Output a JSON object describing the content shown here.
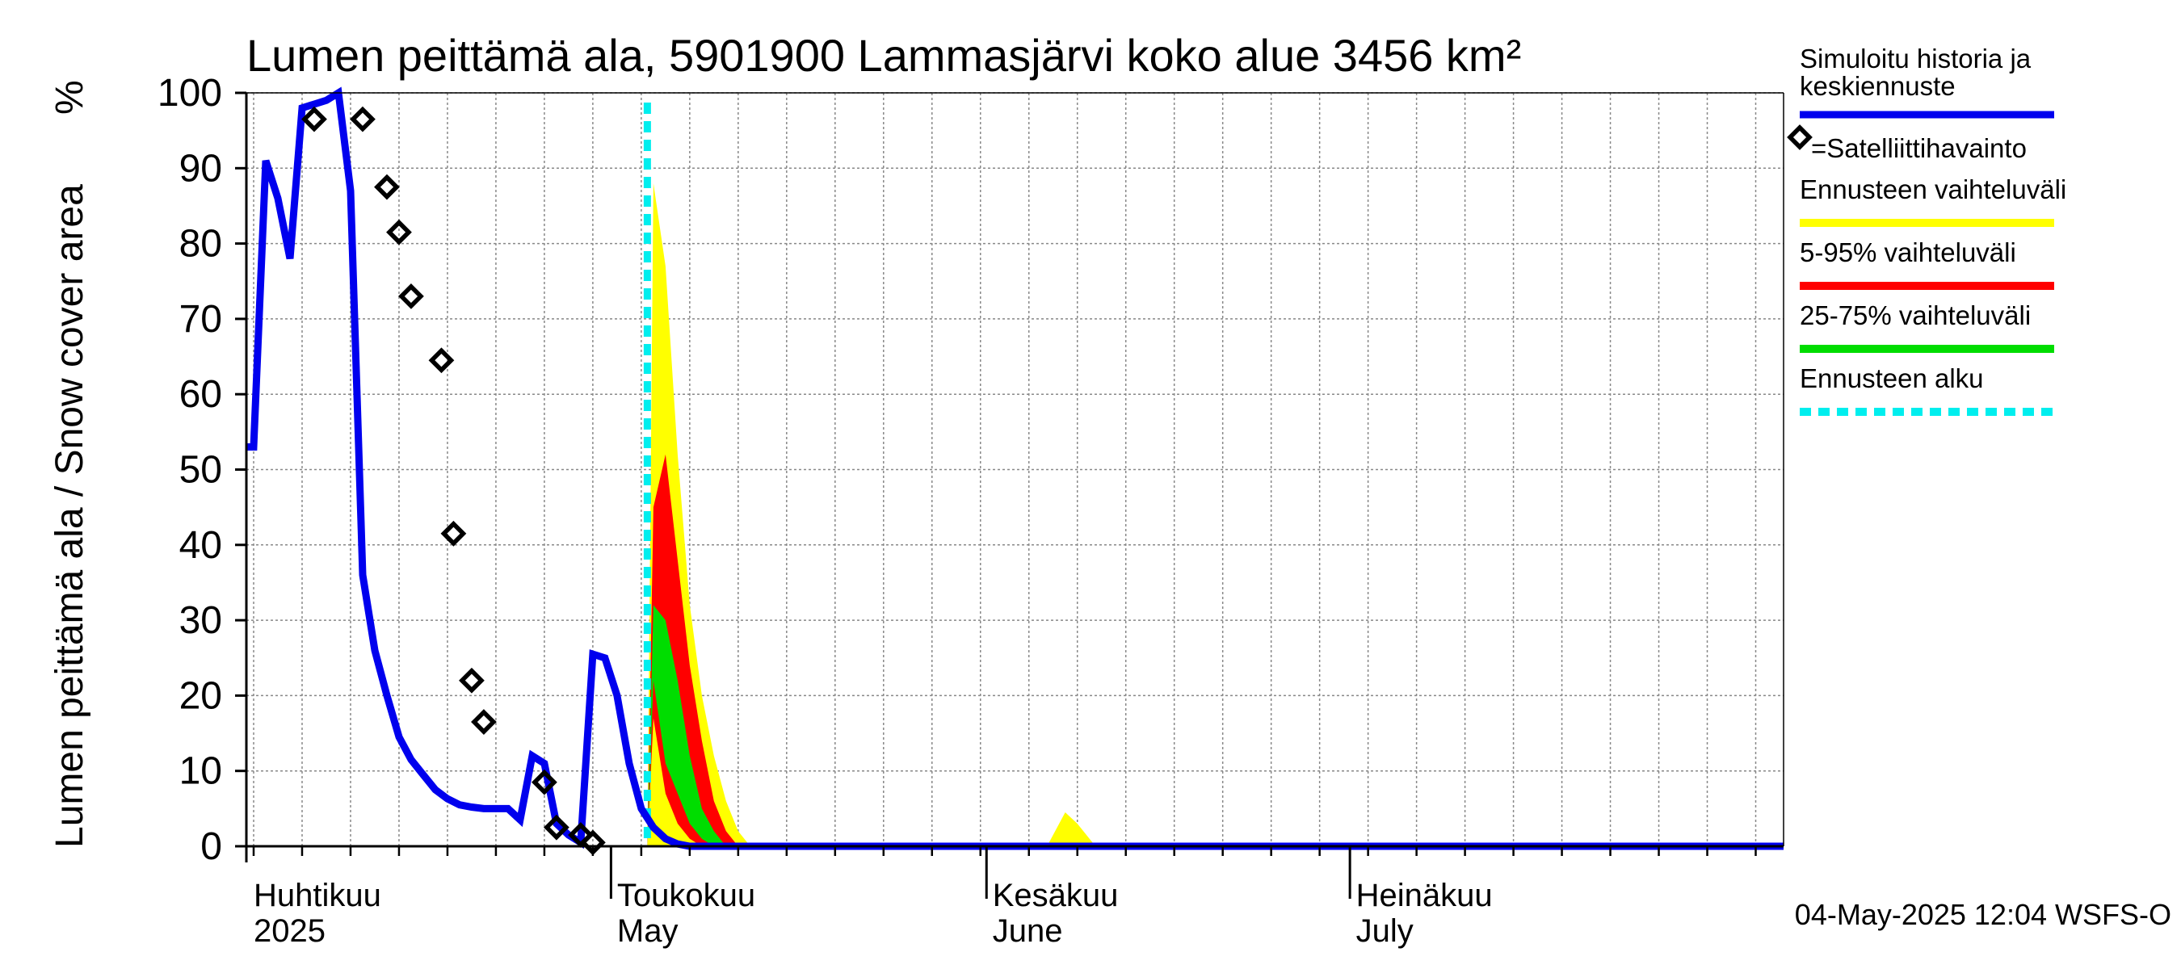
{
  "chart_data": {
    "type": "area",
    "title": "Lumen peittämä ala, 5901900 Lammasjärvi koko alue 3456 km²",
    "ylabel": "Lumen peittämä ala / Snow cover area",
    "yunit": "%",
    "ylim": [
      0,
      100
    ],
    "yticks": [
      0,
      10,
      20,
      30,
      40,
      50,
      60,
      70,
      80,
      90,
      100
    ],
    "xlim_days": [
      0,
      127
    ],
    "x_unit": "days since 2025-04-01",
    "month_labels": [
      {
        "fi": "Huhtikuu",
        "en": "2025",
        "day": 0
      },
      {
        "fi": "Toukokuu",
        "en": "May",
        "day": 30
      },
      {
        "fi": "Kesäkuu",
        "en": "June",
        "day": 61
      },
      {
        "fi": "Heinäkuu",
        "en": "July",
        "day": 91
      }
    ],
    "forecast_start_day": 32.5,
    "colors": {
      "simulated": "#0000ee",
      "range_full": "#ffff00",
      "range_5_95": "#ff0000",
      "range_25_75": "#00dd00",
      "forecast_start": "#00eeee",
      "observation": "#000000",
      "grid": "#888888"
    },
    "series": [
      {
        "name": "Simuloitu historia ja keskiennuste",
        "x": [
          -1,
          0,
          1,
          2,
          3,
          4,
          5,
          6,
          7,
          8,
          9,
          10,
          11,
          12,
          13,
          14,
          15,
          16,
          17,
          18,
          19,
          20,
          21,
          22,
          23,
          24,
          25,
          26,
          27,
          28,
          29,
          30,
          31,
          32,
          33,
          34,
          35,
          36,
          37,
          38,
          39,
          40,
          127
        ],
        "values": [
          53,
          53,
          91,
          86,
          78,
          98,
          98.5,
          99,
          100,
          87,
          36,
          26,
          20,
          14.5,
          11.5,
          9.5,
          7.5,
          6.3,
          5.5,
          5.2,
          5.0,
          5.0,
          5.0,
          3.5,
          12,
          11,
          3,
          1.5,
          0.5,
          25.5,
          25,
          20,
          11,
          5,
          2.5,
          1,
          0.3,
          0,
          0,
          0,
          0,
          0,
          0
        ]
      },
      {
        "name": "Satelliittihavainto",
        "x": [
          5,
          9,
          11,
          12,
          13,
          15.5,
          16.5,
          18,
          19,
          24,
          25,
          27,
          28
        ],
        "values": [
          96.5,
          96.5,
          87.5,
          81.5,
          73,
          64.5,
          41.5,
          22,
          16.5,
          8.5,
          2.5,
          1.5,
          0.5
        ]
      }
    ],
    "bands": [
      {
        "name": "Ennusteen vaihteluväli",
        "x": [
          32.5,
          33,
          34,
          35,
          36,
          37,
          38,
          39,
          40,
          41
        ],
        "upper": [
          0,
          88,
          77,
          52,
          32,
          20,
          12,
          6,
          2,
          0
        ],
        "lower": [
          0,
          0,
          0,
          0,
          0,
          0,
          0,
          0,
          0,
          0
        ]
      },
      {
        "name": "Ennusteen vaihteluväli (Kesäkuu)",
        "x": [
          65.5,
          67,
          68,
          69.5
        ],
        "upper": [
          0,
          4.5,
          3,
          0
        ],
        "lower": [
          0,
          0,
          0,
          0
        ]
      },
      {
        "name": "5-95% vaihteluväli",
        "x": [
          32.5,
          33,
          34,
          35,
          36,
          37,
          38,
          39,
          40
        ],
        "upper": [
          0,
          45,
          52,
          38,
          24,
          14,
          6,
          2,
          0
        ],
        "lower": [
          0,
          17,
          7,
          3,
          1,
          0,
          0,
          0,
          0
        ]
      },
      {
        "name": "25-75% vaihteluväli",
        "x": [
          32.5,
          33,
          34,
          35,
          36,
          37,
          38,
          39
        ],
        "upper": [
          0,
          32,
          30,
          22,
          12,
          5,
          2,
          0
        ],
        "lower": [
          0,
          22,
          11,
          7,
          3,
          1,
          0,
          0
        ]
      }
    ],
    "legend": [
      {
        "label": "Simuloitu historia ja keskiennuste",
        "kind": "line-blue"
      },
      {
        "label": "=Satelliittihavainto",
        "kind": "diamond"
      },
      {
        "label": "Ennusteen vaihteluväli",
        "kind": "line-yellow"
      },
      {
        "label": "5-95% vaihteluväli",
        "kind": "line-red"
      },
      {
        "label": "25-75% vaihteluväli",
        "kind": "line-green"
      },
      {
        "label": "Ennusteen alku",
        "kind": "line-cyan-dashed"
      }
    ],
    "legend_position": "right",
    "grid": true,
    "footer": "04-May-2025 12:04 WSFS-O"
  }
}
